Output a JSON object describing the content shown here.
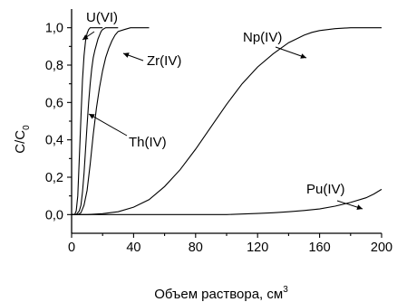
{
  "chart_data": {
    "type": "line",
    "xlabel": "Объем раствора, см",
    "xlabel_sup": "3",
    "ylabel_text": "C/C",
    "ylabel_sub": "0",
    "xlim": [
      0,
      200
    ],
    "ylim": [
      0.0,
      1.05
    ],
    "x_ticks": [
      0,
      40,
      80,
      120,
      160,
      200
    ],
    "x_tick_labels": [
      "0",
      "40",
      "80",
      "120",
      "160",
      "200"
    ],
    "y_ticks": [
      0.0,
      0.2,
      0.4,
      0.6,
      0.8,
      1.0
    ],
    "y_tick_labels": [
      "0,0",
      "0,2",
      "0,4",
      "0,6",
      "0,8",
      "1,0"
    ],
    "grid": false,
    "series": [
      {
        "name": "U(VI)",
        "x": [
          0,
          2,
          3,
          4,
          5,
          6,
          7,
          8,
          9,
          10,
          11,
          12,
          13,
          14,
          16,
          20
        ],
        "y": [
          0.0,
          0.0,
          0.02,
          0.1,
          0.3,
          0.52,
          0.72,
          0.85,
          0.93,
          0.97,
          0.99,
          1.0,
          1.0,
          1.0,
          1.0,
          1.0
        ]
      },
      {
        "name": "Th(IV)",
        "x": [
          0,
          3,
          5,
          6,
          7,
          8,
          9,
          10,
          11,
          12,
          13,
          14,
          15,
          16,
          17,
          18,
          19,
          20,
          22,
          26,
          30
        ],
        "y": [
          0.0,
          0.0,
          0.02,
          0.05,
          0.12,
          0.22,
          0.35,
          0.48,
          0.6,
          0.7,
          0.78,
          0.84,
          0.88,
          0.91,
          0.94,
          0.96,
          0.98,
          0.99,
          1.0,
          1.0,
          1.0
        ]
      },
      {
        "name": "Zr(IV)",
        "x": [
          0,
          4,
          6,
          8,
          10,
          12,
          14,
          16,
          18,
          20,
          22,
          24,
          26,
          28,
          30,
          34,
          38,
          42,
          46,
          50
        ],
        "y": [
          0.0,
          0.0,
          0.01,
          0.05,
          0.13,
          0.27,
          0.43,
          0.57,
          0.68,
          0.77,
          0.84,
          0.89,
          0.93,
          0.96,
          0.98,
          0.99,
          1.0,
          1.0,
          1.0,
          1.0
        ]
      },
      {
        "name": "Np(IV)",
        "x": [
          0,
          10,
          20,
          30,
          40,
          50,
          60,
          70,
          80,
          90,
          100,
          110,
          120,
          130,
          140,
          145,
          150,
          155,
          160,
          170,
          180,
          190,
          200
        ],
        "y": [
          0.0,
          0.0,
          0.005,
          0.015,
          0.04,
          0.08,
          0.15,
          0.24,
          0.35,
          0.47,
          0.59,
          0.7,
          0.79,
          0.86,
          0.92,
          0.94,
          0.96,
          0.975,
          0.985,
          0.995,
          1.0,
          1.0,
          1.0
        ]
      },
      {
        "name": "Pu(IV)",
        "x": [
          0,
          40,
          80,
          100,
          110,
          120,
          130,
          140,
          150,
          160,
          170,
          180,
          190,
          195,
          200
        ],
        "y": [
          0.0,
          0.0,
          0.0,
          0.0,
          0.003,
          0.006,
          0.01,
          0.015,
          0.022,
          0.03,
          0.045,
          0.065,
          0.09,
          0.11,
          0.135
        ]
      }
    ],
    "annotations": [
      {
        "text": "U(VI)"
      },
      {
        "text": "Zr(IV)"
      },
      {
        "text": "Np(IV)"
      },
      {
        "text": "Th(IV)"
      },
      {
        "text": "Pu(IV)"
      }
    ]
  }
}
